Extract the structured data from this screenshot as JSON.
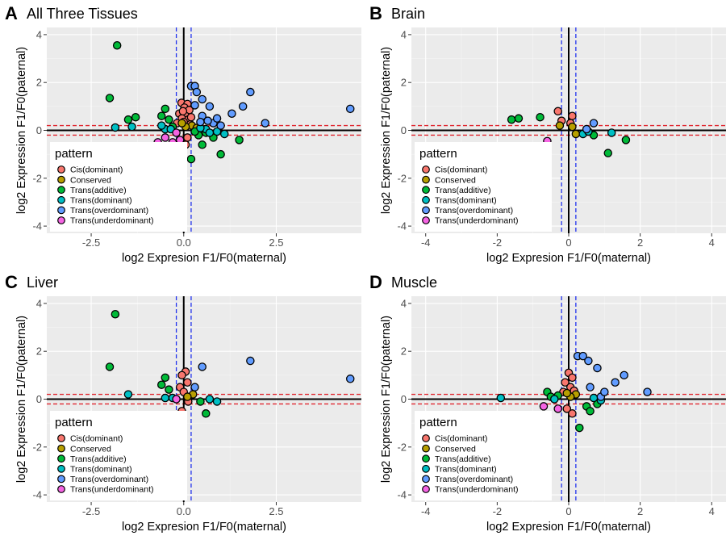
{
  "legend": {
    "title": "pattern",
    "entries": [
      {
        "name": "Cis(dominant)",
        "color": "#F8766D"
      },
      {
        "name": "Conserved",
        "color": "#B79F00"
      },
      {
        "name": "Trans(additive)",
        "color": "#00BA38"
      },
      {
        "name": "Trans(dominant)",
        "color": "#00BFC4"
      },
      {
        "name": "Trans(overdominant)",
        "color": "#619CFF"
      },
      {
        "name": "Trans(underdominant)",
        "color": "#F564E3"
      }
    ]
  },
  "chart_data": [
    {
      "type": "scatter",
      "panel_letter": "A",
      "title": "All Three Tissues",
      "xlabel": "log2 Expresion F1/F0(maternal)",
      "ylabel": "log2 Expression F1/F0(paternal)",
      "xlim": [
        -3.7,
        4.8
      ],
      "ylim": [
        -4.3,
        4.3
      ],
      "xticks": [
        -2.5,
        0.0,
        2.5
      ],
      "xtick_labels": [
        "-2.5",
        "0.0",
        "2.5"
      ],
      "yticks": [
        -4,
        -2,
        0,
        2,
        4
      ],
      "ytick_labels": [
        "-4",
        "-2",
        "0",
        "2",
        "4"
      ],
      "grid": true,
      "legend_position": "bottom-left",
      "vlines": [
        -0.2,
        0.2
      ],
      "hlines": [
        -0.2,
        0.2
      ],
      "points": [
        [
          -0.06,
          1.15,
          0
        ],
        [
          0.1,
          1.1,
          0
        ],
        [
          0.02,
          0.95,
          0
        ],
        [
          0.15,
          0.85,
          0
        ],
        [
          -0.12,
          0.7,
          0
        ],
        [
          0.05,
          0.6,
          0
        ],
        [
          -0.05,
          0.5,
          0
        ],
        [
          0.12,
          0.45,
          0
        ],
        [
          0.0,
          0.35,
          0
        ],
        [
          -0.18,
          0.3,
          0
        ],
        [
          0.18,
          0.25,
          0
        ],
        [
          0.1,
          -0.3,
          0
        ],
        [
          -0.1,
          -0.4,
          0
        ],
        [
          0.05,
          -0.6,
          0
        ],
        [
          -0.02,
          0.8,
          0
        ],
        [
          0.2,
          0.55,
          0
        ],
        [
          0.22,
          0.2,
          1
        ],
        [
          0.05,
          0.15,
          1
        ],
        [
          -0.05,
          0.3,
          1
        ],
        [
          0.35,
          0.1,
          1
        ],
        [
          -1.8,
          3.55,
          2
        ],
        [
          -2.0,
          1.35,
          2
        ],
        [
          -1.5,
          0.45,
          2
        ],
        [
          -1.3,
          0.55,
          2
        ],
        [
          -0.5,
          0.9,
          2
        ],
        [
          -0.6,
          0.6,
          2
        ],
        [
          -0.4,
          0.45,
          2
        ],
        [
          -0.3,
          0.15,
          2
        ],
        [
          0.5,
          -0.6,
          2
        ],
        [
          0.4,
          -0.2,
          2
        ],
        [
          0.6,
          -0.1,
          2
        ],
        [
          0.8,
          -0.3,
          2
        ],
        [
          1.0,
          -1.0,
          2
        ],
        [
          1.5,
          -0.4,
          2
        ],
        [
          0.2,
          -1.2,
          2
        ],
        [
          0.3,
          -0.05,
          2
        ],
        [
          -1.85,
          0.12,
          3
        ],
        [
          -1.4,
          0.15,
          3
        ],
        [
          -0.5,
          0.05,
          3
        ],
        [
          -0.6,
          0.2,
          3
        ],
        [
          0.6,
          0.05,
          3
        ],
        [
          0.7,
          -0.1,
          3
        ],
        [
          0.9,
          -0.05,
          3
        ],
        [
          1.1,
          -0.15,
          3
        ],
        [
          -0.35,
          0.05,
          3
        ],
        [
          0.45,
          0.1,
          3
        ],
        [
          0.2,
          1.85,
          4
        ],
        [
          0.3,
          1.85,
          4
        ],
        [
          0.35,
          1.6,
          4
        ],
        [
          0.5,
          1.3,
          4
        ],
        [
          0.3,
          1.05,
          4
        ],
        [
          0.7,
          1.0,
          4
        ],
        [
          1.3,
          0.7,
          4
        ],
        [
          1.6,
          1.0,
          4
        ],
        [
          1.8,
          1.6,
          4
        ],
        [
          2.2,
          0.3,
          4
        ],
        [
          4.5,
          0.9,
          4
        ],
        [
          0.8,
          0.3,
          4
        ],
        [
          1.0,
          0.2,
          4
        ],
        [
          0.5,
          0.6,
          4
        ],
        [
          0.65,
          0.4,
          4
        ],
        [
          0.9,
          0.5,
          4
        ],
        [
          0.45,
          0.35,
          4
        ],
        [
          -0.7,
          -0.5,
          5
        ],
        [
          -0.5,
          -0.3,
          5
        ],
        [
          -0.2,
          -0.1,
          5
        ],
        [
          -0.3,
          -0.5,
          5
        ],
        [
          -0.4,
          -1.0,
          5
        ],
        [
          -0.3,
          -1.3,
          5
        ],
        [
          -0.2,
          -1.55,
          5
        ],
        [
          -0.1,
          -0.4,
          5
        ]
      ]
    },
    {
      "type": "scatter",
      "panel_letter": "B",
      "title": "Brain",
      "xlabel": "log2 Expresion F1/F0(maternal)",
      "ylabel": "log2 Expression F1/F0(paternal)",
      "xlim": [
        -4.4,
        4.4
      ],
      "ylim": [
        -4.3,
        4.3
      ],
      "xticks": [
        -4,
        -2,
        0,
        2,
        4
      ],
      "xtick_labels": [
        "-4",
        "-2",
        "0",
        "2",
        "4"
      ],
      "yticks": [
        -4,
        -2,
        0,
        2,
        4
      ],
      "ytick_labels": [
        "-4",
        "-2",
        "0",
        "2",
        "4"
      ],
      "grid": true,
      "legend_position": "bottom-left",
      "vlines": [
        -0.2,
        0.2
      ],
      "hlines": [
        -0.2,
        0.2
      ],
      "points": [
        [
          -0.3,
          0.8,
          0
        ],
        [
          0.1,
          0.6,
          0
        ],
        [
          -0.2,
          0.4,
          0
        ],
        [
          0.05,
          0.3,
          0
        ],
        [
          -0.25,
          0.2,
          1
        ],
        [
          0.1,
          0.15,
          1
        ],
        [
          0.2,
          -0.15,
          1
        ],
        [
          -1.6,
          0.45,
          2
        ],
        [
          -1.4,
          0.5,
          2
        ],
        [
          -0.8,
          0.55,
          2
        ],
        [
          0.7,
          -0.2,
          2
        ],
        [
          1.1,
          -0.95,
          2
        ],
        [
          1.6,
          -0.4,
          2
        ],
        [
          0.4,
          -0.15,
          3
        ],
        [
          0.55,
          -0.05,
          3
        ],
        [
          1.2,
          -0.1,
          3
        ],
        [
          0.5,
          0.05,
          4
        ],
        [
          0.7,
          0.3,
          4
        ],
        [
          -0.6,
          -0.45,
          5
        ],
        [
          -0.9,
          -0.9,
          5
        ]
      ]
    },
    {
      "type": "scatter",
      "panel_letter": "C",
      "title": "Liver",
      "xlabel": "log2 Expresion F1/F0(maternal)",
      "ylabel": "log2 Expression F1/F0(paternal)",
      "xlim": [
        -3.7,
        4.8
      ],
      "ylim": [
        -4.3,
        4.3
      ],
      "xticks": [
        -2.5,
        0.0,
        2.5
      ],
      "xtick_labels": [
        "-2.5",
        "0.0",
        "2.5"
      ],
      "yticks": [
        -4,
        -2,
        0,
        2,
        4
      ],
      "ytick_labels": [
        "-4",
        "-2",
        "0",
        "2",
        "4"
      ],
      "grid": true,
      "legend_position": "bottom-left",
      "vlines": [
        -0.2,
        0.2
      ],
      "hlines": [
        -0.2,
        0.2
      ],
      "points": [
        [
          0.05,
          1.15,
          0
        ],
        [
          -0.05,
          1.0,
          0
        ],
        [
          0.1,
          0.7,
          0
        ],
        [
          -0.1,
          0.5,
          0
        ],
        [
          0.0,
          0.3,
          0
        ],
        [
          0.12,
          -0.1,
          0
        ],
        [
          -0.05,
          -0.5,
          0
        ],
        [
          0.25,
          0.2,
          1
        ],
        [
          0.1,
          0.1,
          1
        ],
        [
          -1.85,
          3.55,
          2
        ],
        [
          -2.0,
          1.35,
          2
        ],
        [
          -0.5,
          0.9,
          2
        ],
        [
          -0.6,
          0.6,
          2
        ],
        [
          -0.4,
          0.4,
          2
        ],
        [
          0.6,
          -0.6,
          2
        ],
        [
          0.45,
          -0.1,
          2
        ],
        [
          -1.5,
          0.2,
          3
        ],
        [
          -0.5,
          0.05,
          3
        ],
        [
          0.7,
          0.0,
          3
        ],
        [
          0.9,
          -0.1,
          3
        ],
        [
          -0.3,
          0.05,
          3
        ],
        [
          0.5,
          1.35,
          4
        ],
        [
          1.8,
          1.6,
          4
        ],
        [
          4.5,
          0.85,
          4
        ],
        [
          0.3,
          0.5,
          4
        ],
        [
          -0.2,
          0.0,
          5
        ]
      ]
    },
    {
      "type": "scatter",
      "panel_letter": "D",
      "title": "Muscle",
      "xlabel": "log2 Expresion F1/F0(maternal)",
      "ylabel": "log2 Expression F1/F0(paternal)",
      "xlim": [
        -4.4,
        4.4
      ],
      "ylim": [
        -4.3,
        4.3
      ],
      "xticks": [
        -4,
        -2,
        0,
        2,
        4
      ],
      "xtick_labels": [
        "-4",
        "-2",
        "0",
        "2",
        "4"
      ],
      "yticks": [
        -4,
        -2,
        0,
        2,
        4
      ],
      "ytick_labels": [
        "-4",
        "-2",
        "0",
        "2",
        "4"
      ],
      "grid": true,
      "legend_position": "bottom-left",
      "vlines": [
        -0.2,
        0.2
      ],
      "hlines": [
        -0.2,
        0.2
      ],
      "points": [
        [
          0.0,
          1.1,
          0
        ],
        [
          0.1,
          0.9,
          0
        ],
        [
          -0.1,
          0.7,
          0
        ],
        [
          0.05,
          0.5,
          0
        ],
        [
          0.15,
          0.35,
          0
        ],
        [
          -0.05,
          -0.4,
          0
        ],
        [
          0.1,
          -0.6,
          0
        ],
        [
          -0.15,
          0.3,
          0
        ],
        [
          0.2,
          0.2,
          1
        ],
        [
          0.05,
          0.1,
          1
        ],
        [
          -0.05,
          0.25,
          1
        ],
        [
          -0.6,
          0.3,
          2
        ],
        [
          -0.5,
          0.1,
          2
        ],
        [
          0.5,
          -0.3,
          2
        ],
        [
          0.6,
          -0.5,
          2
        ],
        [
          0.8,
          -0.2,
          2
        ],
        [
          0.3,
          -1.2,
          2
        ],
        [
          -0.3,
          0.15,
          2
        ],
        [
          -1.9,
          0.05,
          3
        ],
        [
          0.7,
          0.05,
          3
        ],
        [
          0.9,
          -0.05,
          3
        ],
        [
          -0.4,
          0.0,
          3
        ],
        [
          0.25,
          1.8,
          4
        ],
        [
          0.4,
          1.8,
          4
        ],
        [
          0.55,
          1.6,
          4
        ],
        [
          0.8,
          1.3,
          4
        ],
        [
          1.3,
          0.7,
          4
        ],
        [
          1.55,
          1.0,
          4
        ],
        [
          2.2,
          0.3,
          4
        ],
        [
          0.9,
          0.1,
          4
        ],
        [
          1.0,
          0.3,
          4
        ],
        [
          0.6,
          0.5,
          4
        ],
        [
          -0.7,
          -0.3,
          5
        ],
        [
          -0.8,
          -1.0,
          5
        ],
        [
          -0.9,
          -1.2,
          5
        ],
        [
          -1.0,
          -1.5,
          5
        ],
        [
          -0.3,
          -0.4,
          5
        ]
      ]
    }
  ]
}
